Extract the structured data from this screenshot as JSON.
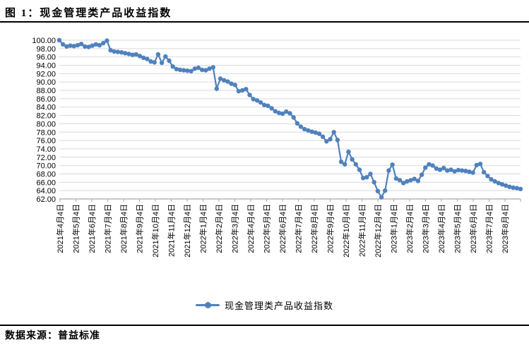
{
  "header": {
    "figure_title": "图 1：现金管理类产品收益指数"
  },
  "legend": {
    "label": "现金管理类产品收益指数"
  },
  "footer": {
    "source": "数据来源：普益标准"
  },
  "colors": {
    "series": "#4F81BD",
    "gridline": "#D9D9D9",
    "axis": "#A6A6A6",
    "text": "#000000"
  },
  "chart_data": {
    "type": "line",
    "title": "现金管理类产品收益指数",
    "xlabel": "",
    "ylabel": "",
    "ylim": [
      62,
      100
    ],
    "ytick_step": 2,
    "grid": true,
    "legend_position": "bottom",
    "marker": "circle",
    "y_tick_labels": [
      "100.00",
      "98.00",
      "96.00",
      "94.00",
      "92.00",
      "90.00",
      "88.00",
      "86.00",
      "84.00",
      "82.00",
      "80.00",
      "78.00",
      "76.00",
      "74.00",
      "72.00",
      "70.00",
      "68.00",
      "66.00",
      "64.00",
      "62.00"
    ],
    "x_labels": [
      "2021年4月4日",
      "2021年5月4日",
      "2021年6月4日",
      "2021年7月4日",
      "2021年8月4日",
      "2021年9月4日",
      "2021年10月4日",
      "2021年11月4日",
      "2021年12月4日",
      "2022年1月4日",
      "2022年2月4日",
      "2022年3月4日",
      "2022年4月4日",
      "2022年5月4日",
      "2022年6月4日",
      "2022年7月4日",
      "2022年8月4日",
      "2022年9月4日",
      "2022年10月4日",
      "2022年11月4日",
      "2022年12月4日",
      "2023年1月4日",
      "2023年2月4日",
      "2023年3月4日",
      "2023年4月4日",
      "2023年5月4日",
      "2023年6月4日",
      "2023年7月4日",
      "2023年8月4日"
    ],
    "series": [
      {
        "name": "现金管理类产品收益指数",
        "color": "#4F81BD",
        "values": [
          100.0,
          99.0,
          98.5,
          98.7,
          98.6,
          98.8,
          99.1,
          98.5,
          98.4,
          98.7,
          99.0,
          98.8,
          99.3,
          99.9,
          97.6,
          97.3,
          97.2,
          97.1,
          96.9,
          96.7,
          96.5,
          96.6,
          96.2,
          95.8,
          95.5,
          94.9,
          94.7,
          96.6,
          94.6,
          96.1,
          95.1,
          93.7,
          93.1,
          92.9,
          92.8,
          92.7,
          92.6,
          93.2,
          93.4,
          92.9,
          92.8,
          93.2,
          93.5,
          88.4,
          90.8,
          90.4,
          90.1,
          89.6,
          89.3,
          87.8,
          88.0,
          88.3,
          86.9,
          85.9,
          85.6,
          85.1,
          84.5,
          84.3,
          83.7,
          83.0,
          82.6,
          82.4,
          82.9,
          82.5,
          81.5,
          80.1,
          79.3,
          78.7,
          78.4,
          78.1,
          77.9,
          77.6,
          76.9,
          75.8,
          76.3,
          78.0,
          76.1,
          70.9,
          70.3,
          73.3,
          71.5,
          70.3,
          69.0,
          67.0,
          67.2,
          68.0,
          66.0,
          63.9,
          62.4,
          64.0,
          68.8,
          70.2,
          66.9,
          66.5,
          65.8,
          66.2,
          66.5,
          66.8,
          66.3,
          67.8,
          69.5,
          70.3,
          70.0,
          69.3,
          69.0,
          69.4,
          68.8,
          69.0,
          68.6,
          68.9,
          68.8,
          68.7,
          68.5,
          68.3,
          70.1,
          70.4,
          68.4,
          67.5,
          66.7,
          66.2,
          65.8,
          65.5,
          65.2,
          64.9,
          64.7,
          64.6,
          64.4
        ]
      }
    ]
  }
}
